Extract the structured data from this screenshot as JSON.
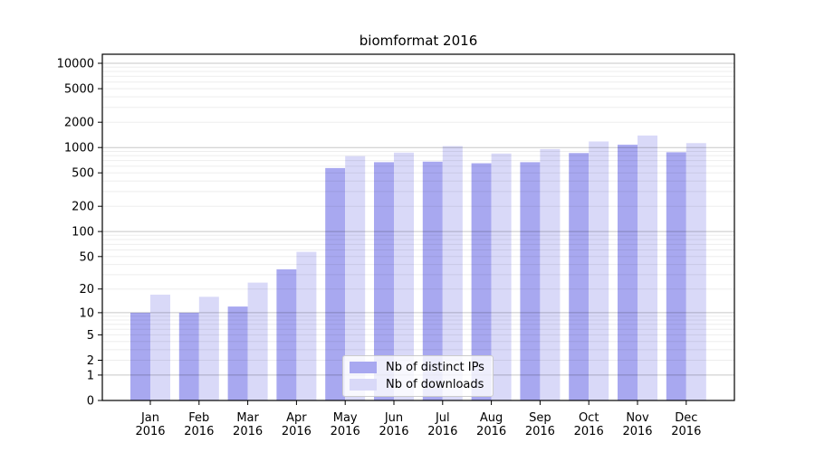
{
  "title": "biomformat 2016",
  "chart_data": {
    "type": "bar",
    "title": "biomformat 2016",
    "yscale": "log1p",
    "ylim": [
      0,
      12800
    ],
    "ytick_labels": [
      0,
      1,
      2,
      5,
      10,
      20,
      50,
      100,
      200,
      500,
      1000,
      2000,
      5000,
      10000
    ],
    "grid": true,
    "legend_position": "lower center",
    "months": [
      "Jan",
      "Feb",
      "Mar",
      "Apr",
      "May",
      "Jun",
      "Jul",
      "Aug",
      "Sep",
      "Oct",
      "Nov",
      "Dec"
    ],
    "year_label": "2016",
    "series": [
      {
        "name": "Nb of distinct IPs",
        "color": "#a8a8f0",
        "values": [
          10,
          10,
          12,
          35,
          570,
          670,
          680,
          650,
          670,
          860,
          1080,
          880
        ]
      },
      {
        "name": "Nb of downloads",
        "color": "#d9d9f8",
        "values": [
          17,
          16,
          24,
          57,
          790,
          870,
          1040,
          850,
          960,
          1180,
          1390,
          1130
        ]
      }
    ]
  },
  "colors": {
    "background": "#ffffff",
    "spine": "#000000",
    "tick": "#000000",
    "text": "#000000",
    "grid_major": "rgba(0,0,0,0.22)",
    "grid_minor": "rgba(0,0,0,0.07)"
  }
}
